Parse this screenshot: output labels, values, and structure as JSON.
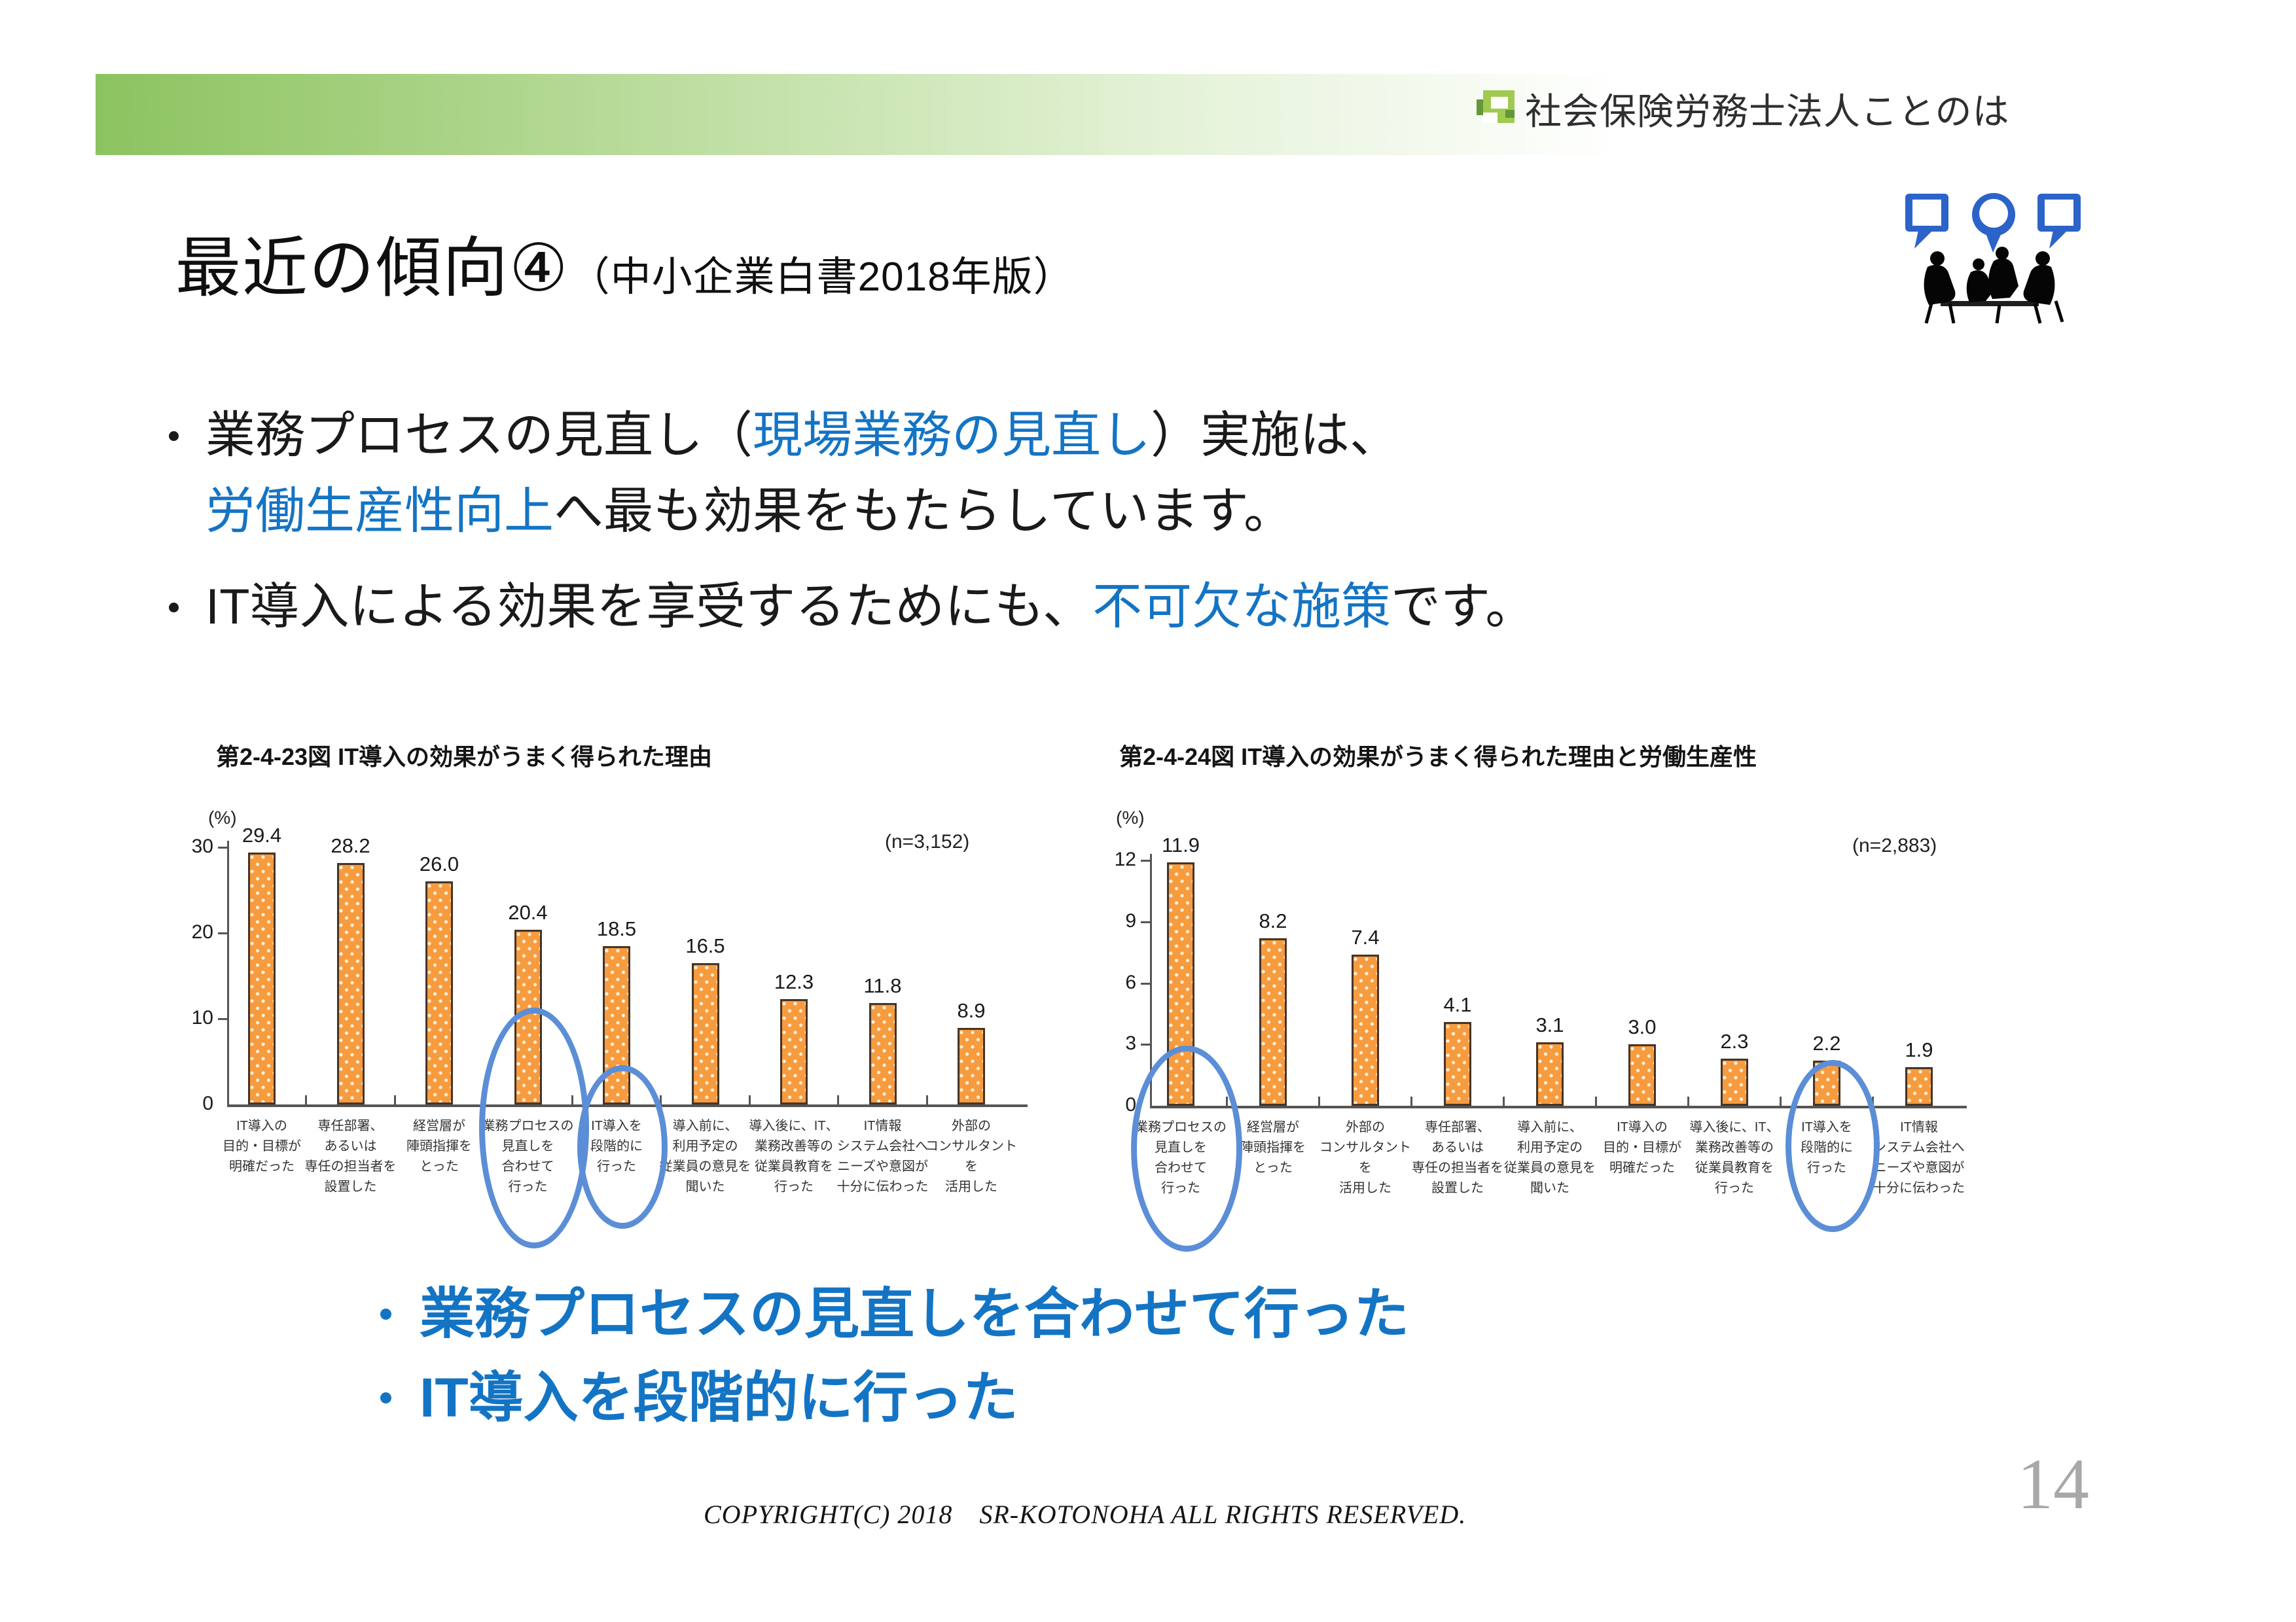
{
  "brand": {
    "name": "社会保険労務士法人ことのは"
  },
  "slide": {
    "title": "最近の傾向④",
    "title_suffix": "（中小企業白書2018年版）",
    "page_number": "14",
    "copyright": "COPYRIGHT(C) 2018　SR-KOTONOHA ALL RIGHTS RESERVED."
  },
  "key_points": [
    {
      "lines": [
        {
          "segments": [
            {
              "text": "業務プロセスの見直し（",
              "color": "black"
            },
            {
              "text": "現場業務の見直し",
              "color": "blue"
            },
            {
              "text": "）実施は、",
              "color": "black"
            }
          ]
        },
        {
          "segments": [
            {
              "text": "労働生産性向上",
              "color": "blue"
            },
            {
              "text": "へ最も効果をもたらしています。",
              "color": "black"
            }
          ]
        }
      ]
    },
    {
      "lines": [
        {
          "segments": [
            {
              "text": "IT導入による効果を享受するためにも、",
              "color": "black"
            },
            {
              "text": "不可欠な施策",
              "color": "blue"
            },
            {
              "text": "です。",
              "color": "black"
            }
          ]
        }
      ]
    }
  ],
  "chart_data": [
    {
      "type": "bar",
      "title": "第2-4-23図 IT導入の効果がうまく得られた理由",
      "unit_label": "(%)",
      "sample_label": "(n=3,152)",
      "xlabel": "",
      "ylabel": "(%)",
      "ylim": [
        0,
        30
      ],
      "yticks": [
        0,
        10,
        20,
        30
      ],
      "grid": false,
      "legend": false,
      "categories": [
        "IT導入の\n目的・目標が\n明確だった",
        "専任部署、\nあるいは\n専任の担当者を\n設置した",
        "経営層が\n陣頭指揮を\nとった",
        "業務プロセスの\n見直しを\n合わせて\n行った",
        "IT導入を\n段階的に\n行った",
        "導入前に、\n利用予定の\n従業員の意見を\n聞いた",
        "導入後に、IT、\n業務改善等の\n従業員教育を\n行った",
        "IT情報\nシステム会社へ\nニーズや意図が\n十分に伝わった",
        "外部の\nコンサルタントを\n活用した"
      ],
      "values": [
        29.4,
        28.2,
        26.0,
        20.4,
        18.5,
        16.5,
        12.3,
        11.8,
        8.9
      ],
      "circled_categories": [
        3,
        4
      ]
    },
    {
      "type": "bar",
      "title": "第2-4-24図 IT導入の効果がうまく得られた理由と労働生産性",
      "unit_label": "(%)",
      "sample_label": "(n=2,883)",
      "xlabel": "",
      "ylabel": "(%)",
      "ylim": [
        0,
        12
      ],
      "yticks": [
        0,
        3,
        6,
        9,
        12
      ],
      "grid": false,
      "legend": false,
      "categories": [
        "業務プロセスの\n見直しを\n合わせて\n行った",
        "経営層が\n陣頭指揮を\nとった",
        "外部の\nコンサルタントを\n活用した",
        "専任部署、\nあるいは\n専任の担当者を\n設置した",
        "導入前に、\n利用予定の\n従業員の意見を\n聞いた",
        "IT導入の\n目的・目標が\n明確だった",
        "導入後に、IT、\n業務改善等の\n従業員教育を\n行った",
        "IT導入を\n段階的に\n行った",
        "IT情報\nシステム会社へ\nニーズや意図が\n十分に伝わった"
      ],
      "values": [
        11.9,
        8.2,
        7.4,
        4.1,
        3.1,
        3.0,
        2.3,
        2.2,
        1.9
      ],
      "circled_categories": [
        0,
        7
      ]
    }
  ],
  "conclusions": [
    "業務プロセスの見直しを合わせて行った",
    "IT導入を段階的に行った"
  ],
  "colors": {
    "accent_blue": "#1474c4",
    "bar_orange": "#f79b3f",
    "ellipse_blue": "#5b8ed6",
    "header_green": "#8cc360",
    "text_dark": "#1a1a1a",
    "page_gray": "#a8a8a8"
  }
}
